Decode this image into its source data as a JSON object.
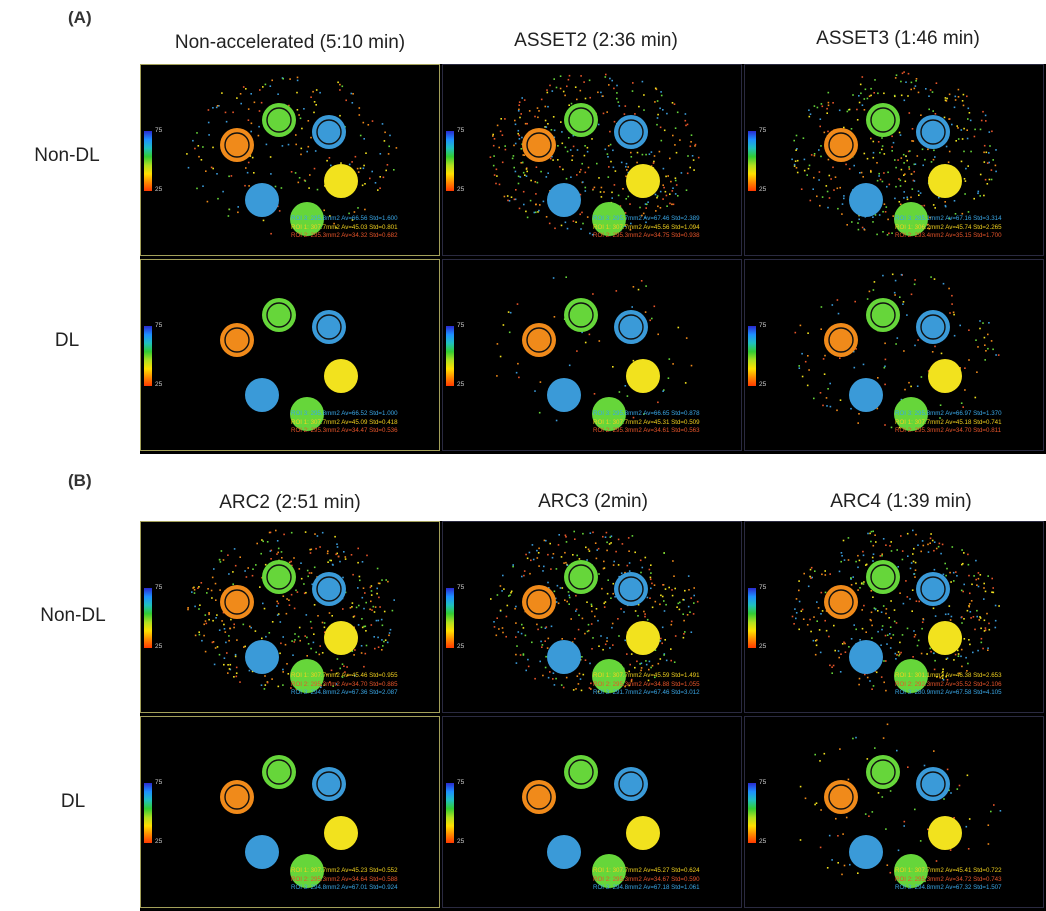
{
  "panels": {
    "A": {
      "label": "(A)",
      "columns": [
        "Non-accelerated (5:10 min)",
        "ASSET2 (2:36 min)",
        "ASSET3 (1:46 min)"
      ],
      "rows": [
        "Non-DL",
        "DL"
      ]
    },
    "B": {
      "label": "(B)",
      "columns": [
        "ARC2 (2:51 min)",
        "ARC3 (2min)",
        "ARC4 (1:39 min)"
      ],
      "rows": [
        "Non-DL",
        "DL"
      ]
    }
  },
  "colorbar": {
    "max": "75",
    "min": "25"
  },
  "cells": [
    {
      "lines": [
        "ROI 3: 295.8mm2 Av=66.56  Std=1.600",
        "ROI 1: 307.7mm2 Av=45.03  Std=0.801",
        "ROI 2: 295.3mm2 Av=34.32  Std=0.682"
      ],
      "noise": 0.5
    },
    {
      "lines": [
        "ROI 3: 295.7mm2 Av=67.46  Std=2.389",
        "ROI 1: 307.7mm2 Av=45.56  Std=1.094",
        "ROI 2: 295.3mm2 Av=34.75  Std=0.938"
      ],
      "noise": 1.0
    },
    {
      "lines": [
        "ROI 3: 285.1mm2 Av=67.16  Std=3.314",
        "ROI 1: 306.2mm2 Av=45.74  Std=2.265",
        "ROI 2: 293.4mm2 Av=35.15  Std=1.700"
      ],
      "noise": 1.0
    },
    {
      "lines": [
        "ROI 3: 295.8mm2 Av=66.52  Std=1.000",
        "ROI 1: 307.7mm2 Av=45.09  Std=0.418",
        "ROI 2: 295.3mm2 Av=34.47  Std=0.536"
      ],
      "noise": 0.0
    },
    {
      "lines": [
        "ROI 3: 295.8mm2 Av=66.65  Std=0.878",
        "ROI 1: 307.7mm2 Av=45.31  Std=0.509",
        "ROI 2: 295.3mm2 Av=34.61  Std=0.563"
      ],
      "noise": 0.15
    },
    {
      "lines": [
        "ROI 3: 295.8mm2 Av=66.97  Std=1.370",
        "ROI 1: 307.7mm2 Av=45.18  Std=0.741",
        "ROI 2: 295.3mm2 Av=34.70  Std=0.811"
      ],
      "noise": 0.35
    },
    {
      "lines": [
        "ROI 1: 307.7mm2 Av=45.46  Std=0.955",
        "ROI 2: 295.3mm2 Av=34.70  Std=0.885",
        "ROI 3: 294.8mm2 Av=67.36  Std=2.087"
      ],
      "noise": 1.0
    },
    {
      "lines": [
        "ROI 1: 307.7mm2 Av=45.59  Std=1.491",
        "ROI 2: 295.3mm2 Av=34.88  Std=1.055",
        "ROI 3: 291.7mm2 Av=67.46  Std=3.012"
      ],
      "noise": 1.0
    },
    {
      "lines": [
        "ROI 1: 301.1mm2 Av=46.38  Std=2.653",
        "ROI 2: 292.3mm2 Av=35.52  Std=2.106",
        "ROI 3: 280.9mm2 Av=67.58  Std=4.105"
      ],
      "noise": 1.0
    },
    {
      "lines": [
        "ROI 1: 307.7mm2 Av=45.23  Std=0.552",
        "ROI 2: 295.3mm2 Av=34.64  Std=0.588",
        "ROI 3: 294.8mm2 Av=67.01  Std=0.924"
      ],
      "noise": 0.0
    },
    {
      "lines": [
        "ROI 1: 307.7mm2 Av=45.27  Std=0.624",
        "ROI 2: 295.3mm2 Av=34.67  Std=0.590",
        "ROI 3: 294.8mm2 Av=67.18  Std=1.061"
      ],
      "noise": 0.0
    },
    {
      "lines": [
        "ROI 1: 307.7mm2 Av=45.41  Std=0.722",
        "ROI 2: 295.3mm2 Av=34.72  Std=0.743",
        "ROI 3: 294.8mm2 Av=67.32  Std=1.507"
      ],
      "noise": 0.2
    }
  ],
  "colors": {
    "orange": "#f08a1a",
    "green": "#66d63a",
    "blue": "#3a9ad8",
    "yellow": "#f2e21e",
    "roi1": "#f2d21e",
    "roi2": "#e8552a",
    "roi3": "#3aa8e8"
  }
}
